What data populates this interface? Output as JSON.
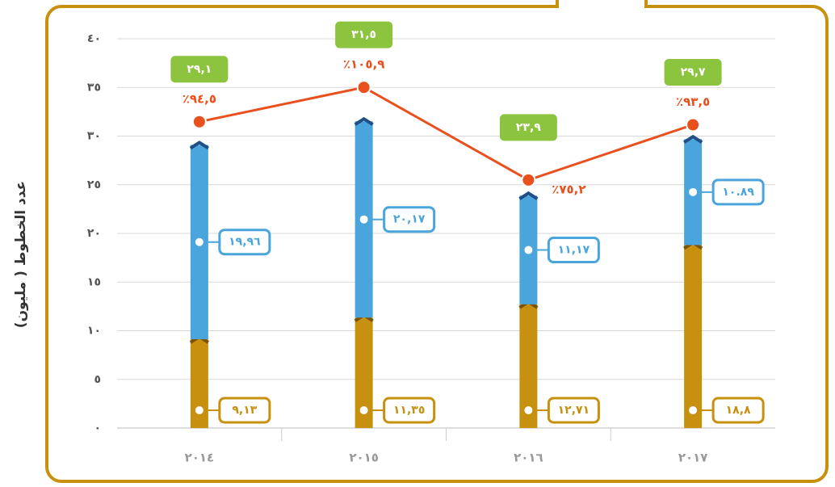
{
  "chart_data": {
    "type": "bar",
    "stacked": true,
    "y_label": "عدد الخطوط ( مليون)",
    "categories": [
      "٢٠١٤",
      "٢٠١٥",
      "٢٠١٦",
      "٢٠١٧"
    ],
    "ylim": [
      0,
      40
    ],
    "yticks": [
      {
        "value": 0,
        "label": "٠"
      },
      {
        "value": 5,
        "label": "٥"
      },
      {
        "value": 10,
        "label": "١٠"
      },
      {
        "value": 15,
        "label": "١٥"
      },
      {
        "value": 20,
        "label": "٢٠"
      },
      {
        "value": 25,
        "label": "٢٥"
      },
      {
        "value": 30,
        "label": "٣٠"
      },
      {
        "value": 35,
        "label": "٣٥"
      },
      {
        "value": 40,
        "label": "٤٠"
      }
    ],
    "grid": true,
    "y2lim": [
      -7,
      122
    ],
    "series": [
      {
        "color": "#c8900f",
        "values": [
          9.13,
          11.35,
          12.71,
          18.8
        ],
        "value_labels": [
          "٩,١٣",
          "١١,٣٥",
          "١٢,٧١",
          "١٨,٨"
        ]
      },
      {
        "color": "#4aa5dc",
        "values": [
          19.96,
          20.17,
          11.17,
          10.89
        ],
        "value_labels": [
          "١٩,٩٦",
          "٢٠,١٧",
          "١١,١٧",
          "١٠.٨٩"
        ]
      },
      {
        "type": "line",
        "axis": "y2",
        "color": "#e8501e",
        "values": [
          94.5,
          105.9,
          75.2,
          93.5
        ],
        "value_labels": [
          "٪٩٤,٥",
          "٪١٠٥,٩",
          "٪٧٥,٢",
          "٪٩٣,٥"
        ]
      }
    ],
    "totals": {
      "color": "#8cc43f",
      "values": [
        29.1,
        31.5,
        23.9,
        29.7
      ],
      "value_labels": [
        "٢٩,١",
        "٣١,٥",
        "٢٣,٩",
        "٢٩,٧"
      ]
    }
  }
}
